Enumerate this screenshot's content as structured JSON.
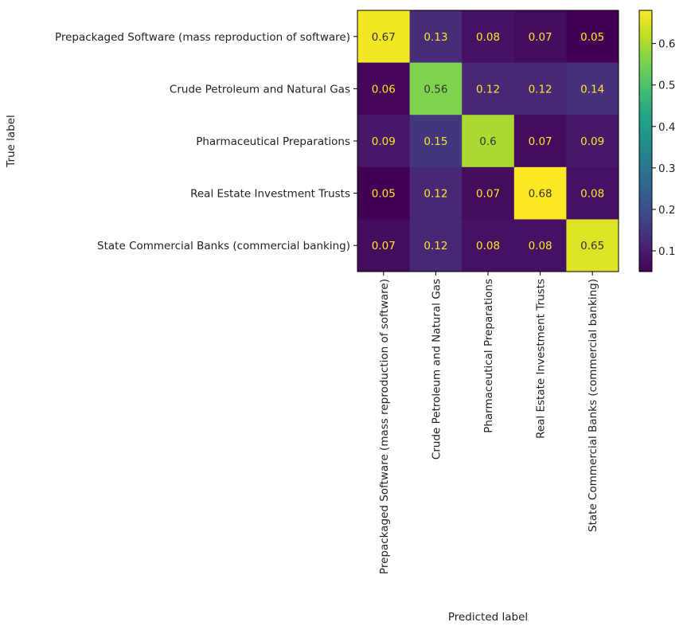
{
  "chart_data": {
    "type": "heatmap",
    "title": "",
    "xlabel": "Predicted label",
    "ylabel": "True label",
    "x_categories": [
      "Prepackaged Software (mass reproduction of software)",
      "Crude Petroleum and Natural Gas",
      "Pharmaceutical Preparations",
      "Real Estate Investment Trusts",
      "State Commercial Banks (commercial banking)"
    ],
    "y_categories": [
      "Prepackaged Software (mass reproduction of software)",
      "Crude Petroleum and Natural Gas",
      "Pharmaceutical Preparations",
      "Real Estate Investment Trusts",
      "State Commercial Banks (commercial banking)"
    ],
    "values": [
      [
        0.67,
        0.13,
        0.08,
        0.07,
        0.05
      ],
      [
        0.06,
        0.56,
        0.12,
        0.12,
        0.14
      ],
      [
        0.09,
        0.15,
        0.6,
        0.07,
        0.09
      ],
      [
        0.05,
        0.12,
        0.07,
        0.68,
        0.08
      ],
      [
        0.07,
        0.12,
        0.08,
        0.08,
        0.65
      ]
    ],
    "colormap": "viridis",
    "colorbar": {
      "range": [
        0.05,
        0.68
      ],
      "ticks": [
        "0.1",
        "0.2",
        "0.3",
        "0.4",
        "0.5",
        "0.6"
      ]
    }
  }
}
